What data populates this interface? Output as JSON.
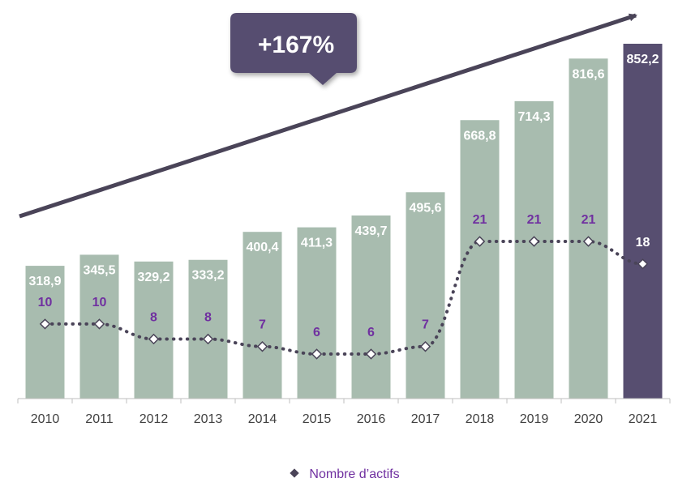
{
  "chart_data": {
    "type": "bar",
    "categories": [
      "2010",
      "2011",
      "2012",
      "2013",
      "2014",
      "2015",
      "2016",
      "2017",
      "2018",
      "2019",
      "2020",
      "2021"
    ],
    "series": [
      {
        "values": [
          318.9,
          345.5,
          329.2,
          333.2,
          400.4,
          411.3,
          439.7,
          495.6,
          668.8,
          714.3,
          816.6,
          852.2
        ],
        "labels": [
          "318,9",
          "345,5",
          "329,2",
          "333,2",
          "400,4",
          "411,3",
          "439,7",
          "495,6",
          "668,8",
          "714,3",
          "816,6",
          "852,2"
        ],
        "color": "#a8bcaf",
        "highlight_color": "#574e70",
        "highlight_index": 11
      },
      {
        "name": "Nombre d’actifs",
        "type": "line",
        "style": "dotted",
        "marker": "diamond",
        "values": [
          10,
          10,
          8,
          8,
          7,
          6,
          6,
          7,
          21,
          21,
          21,
          18
        ],
        "color": "#4a4458",
        "label_color": "#7030a0",
        "last_label_color": "#ffffff"
      }
    ],
    "annotation": {
      "text": "+167%",
      "shape": "callout",
      "arrow": "rising trend arrow"
    },
    "legend": {
      "position": "bottom",
      "entries": [
        "Nombre d’actifs"
      ]
    },
    "ylim": [
      0,
      852.2
    ],
    "grid": false,
    "title": "",
    "xlabel": "",
    "ylabel": ""
  }
}
